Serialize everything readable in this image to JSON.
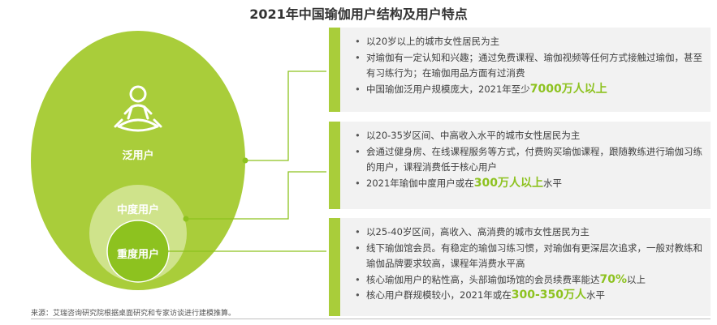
{
  "title": "2021年中国瑜伽用户结构及用户特点",
  "circles": {
    "outer_label": "泛用户",
    "middle_label": "中度用户",
    "inner_label": "重度用户",
    "outer_color": "#a9cd3a",
    "middle_color": "#cfe38b",
    "inner_color": "#8dc21f"
  },
  "panels": [
    {
      "bullets": [
        {
          "pre": "以20岁以上的城市女性居民为主",
          "hl": "",
          "post": ""
        },
        {
          "pre": "对瑜伽有一定认知和兴趣；通过免费课程、瑜伽视频等任何方式接触过瑜伽，甚至有习练行为；在瑜伽用品方面有过消费",
          "hl": "",
          "post": ""
        },
        {
          "pre": "中国瑜伽泛用户规模庞大，2021年至少",
          "hl": "7000万人以上",
          "post": ""
        }
      ]
    },
    {
      "bullets": [
        {
          "pre": "以20-35岁区间、中高收入水平的城市女性居民为主",
          "hl": "",
          "post": ""
        },
        {
          "pre": "会通过健身房、在线课程服务等方式，付费购买瑜伽课程，跟随教练进行瑜伽习练的用户，课程消费低于核心用户",
          "hl": "",
          "post": ""
        },
        {
          "pre": "2021年瑜伽中度用户或在",
          "hl": "300万人以上",
          "post": "水平"
        }
      ]
    },
    {
      "bullets": [
        {
          "pre": "以25-40岁区间，高收入、高消费的城市女性居民为主",
          "hl": "",
          "post": ""
        },
        {
          "pre": "线下瑜伽馆会员。有稳定的瑜伽习练习惯，对瑜伽有更深层次追求，一般对教练和瑜伽品牌要求较高，课程年消费水平高",
          "hl": "",
          "post": ""
        },
        {
          "pre": "核心瑜伽用户的粘性高，头部瑜伽场馆的会员续费率能达",
          "hl": "70%",
          "post": "以上"
        },
        {
          "pre": "核心用户群规模较小，2021年或在",
          "hl": "300-350万人",
          "post": "水平"
        }
      ]
    }
  ],
  "source": "来源：艾瑞咨询研究院根据桌面研究和专家访谈进行建模推算。",
  "icons": {
    "meditation": "meditation-icon"
  }
}
